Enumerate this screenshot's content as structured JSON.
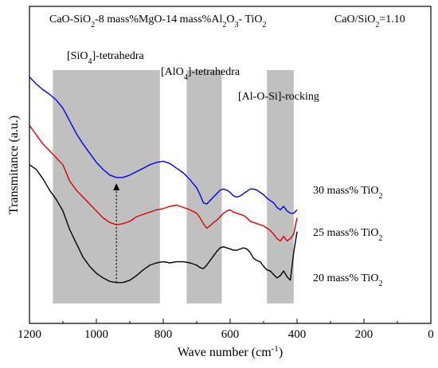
{
  "chart_data": {
    "type": "line",
    "title": {
      "pre": "CaO-SiO",
      "s1": "2",
      "mid1": "-8 mass%MgO-14 mass%Al",
      "s2": "2",
      "mid2": "O",
      "s3": "3",
      "post": "- TiO",
      "s4": "2"
    },
    "ratio": {
      "pre": "CaO/SiO",
      "sub": "2",
      "post": "=1.10"
    },
    "xlabel": {
      "pre": "Wave number (cm",
      "sup": "-1",
      "post": ")"
    },
    "ylabel": "Transmitance (a.u.)",
    "xlim": [
      1200,
      0
    ],
    "x_reversed": true,
    "xticks": [
      1200,
      1000,
      800,
      600,
      400,
      200,
      0
    ],
    "y_ticks_shown": false,
    "bands": [
      {
        "name": "sio4",
        "label": {
          "pre": "[SiO",
          "sub": "4",
          "post": "]-tetrahedra"
        },
        "range": [
          1130,
          810
        ],
        "color": "#c0c0c0"
      },
      {
        "name": "alo4",
        "label": {
          "pre": "[AlO",
          "sub": "4",
          "post": "]-tetrahedra"
        },
        "range": [
          730,
          625
        ],
        "color": "#c0c0c0"
      },
      {
        "name": "alosi",
        "label": {
          "pre": "[Al-O-Si]-rocking",
          "sub": "",
          "post": ""
        },
        "range": [
          490,
          410
        ],
        "color": "#c0c0c0"
      }
    ],
    "arrow": {
      "x": 940,
      "from_y": 0.93,
      "to_y": 0.5
    },
    "ylim": [
      0,
      1
    ],
    "series": [
      {
        "name": {
          "pre": "30 mass% TiO",
          "sub": "2"
        },
        "color": "#0000ee",
        "x": [
          1200,
          1180,
          1160,
          1140,
          1120,
          1100,
          1080,
          1060,
          1040,
          1020,
          1000,
          980,
          960,
          940,
          920,
          900,
          880,
          860,
          840,
          820,
          800,
          780,
          760,
          740,
          720,
          700,
          690,
          680,
          670,
          660,
          650,
          640,
          630,
          620,
          610,
          600,
          590,
          580,
          570,
          560,
          550,
          540,
          530,
          520,
          510,
          500,
          490,
          480,
          470,
          460,
          450,
          440,
          430,
          420,
          410,
          400
        ],
        "y": [
          0.04,
          0.07,
          0.095,
          0.115,
          0.14,
          0.175,
          0.23,
          0.285,
          0.33,
          0.37,
          0.41,
          0.44,
          0.465,
          0.475,
          0.475,
          0.465,
          0.45,
          0.435,
          0.42,
          0.41,
          0.405,
          0.415,
          0.435,
          0.455,
          0.485,
          0.52,
          0.55,
          0.585,
          0.59,
          0.575,
          0.56,
          0.545,
          0.53,
          0.525,
          0.53,
          0.54,
          0.555,
          0.56,
          0.555,
          0.545,
          0.535,
          0.525,
          0.525,
          0.53,
          0.54,
          0.55,
          0.565,
          0.575,
          0.585,
          0.605,
          0.615,
          0.6,
          0.62,
          0.63,
          0.63,
          0.615
        ]
      },
      {
        "name": {
          "pre": "25 mass% TiO",
          "sub": "2"
        },
        "color": "#e00000",
        "x": [
          1200,
          1180,
          1160,
          1140,
          1120,
          1100,
          1080,
          1060,
          1040,
          1020,
          1000,
          980,
          960,
          940,
          920,
          900,
          880,
          860,
          840,
          820,
          800,
          780,
          760,
          740,
          720,
          700,
          690,
          680,
          670,
          660,
          650,
          640,
          630,
          620,
          610,
          600,
          590,
          580,
          570,
          560,
          550,
          540,
          530,
          520,
          510,
          500,
          490,
          480,
          470,
          460,
          450,
          440,
          430,
          420,
          410,
          400
        ],
        "y": [
          0.25,
          0.29,
          0.33,
          0.36,
          0.39,
          0.42,
          0.49,
          0.53,
          0.56,
          0.59,
          0.62,
          0.65,
          0.67,
          0.68,
          0.675,
          0.665,
          0.645,
          0.635,
          0.625,
          0.615,
          0.61,
          0.6,
          0.595,
          0.605,
          0.615,
          0.63,
          0.65,
          0.675,
          0.695,
          0.685,
          0.67,
          0.66,
          0.645,
          0.63,
          0.62,
          0.615,
          0.625,
          0.63,
          0.635,
          0.64,
          0.65,
          0.665,
          0.67,
          0.675,
          0.68,
          0.685,
          0.695,
          0.705,
          0.72,
          0.74,
          0.75,
          0.73,
          0.75,
          0.74,
          0.72,
          0.65
        ]
      },
      {
        "name": {
          "pre": "20 mass% TiO",
          "sub": "2"
        },
        "color": "#000000",
        "x": [
          1200,
          1180,
          1160,
          1140,
          1120,
          1100,
          1080,
          1060,
          1040,
          1020,
          1000,
          980,
          960,
          940,
          920,
          900,
          880,
          860,
          840,
          820,
          800,
          780,
          760,
          740,
          720,
          700,
          690,
          680,
          670,
          660,
          650,
          640,
          630,
          620,
          610,
          600,
          590,
          580,
          570,
          560,
          550,
          540,
          530,
          520,
          510,
          500,
          490,
          480,
          470,
          460,
          450,
          440,
          430,
          420,
          410,
          400
        ],
        "y": [
          0.42,
          0.44,
          0.48,
          0.53,
          0.57,
          0.62,
          0.7,
          0.76,
          0.82,
          0.86,
          0.89,
          0.91,
          0.925,
          0.93,
          0.93,
          0.92,
          0.9,
          0.875,
          0.855,
          0.845,
          0.84,
          0.845,
          0.84,
          0.84,
          0.845,
          0.855,
          0.865,
          0.87,
          0.855,
          0.835,
          0.815,
          0.795,
          0.78,
          0.775,
          0.78,
          0.785,
          0.79,
          0.79,
          0.785,
          0.78,
          0.785,
          0.8,
          0.825,
          0.835,
          0.84,
          0.86,
          0.875,
          0.88,
          0.895,
          0.91,
          0.9,
          0.88,
          0.905,
          0.92,
          0.8,
          0.71
        ]
      }
    ]
  }
}
